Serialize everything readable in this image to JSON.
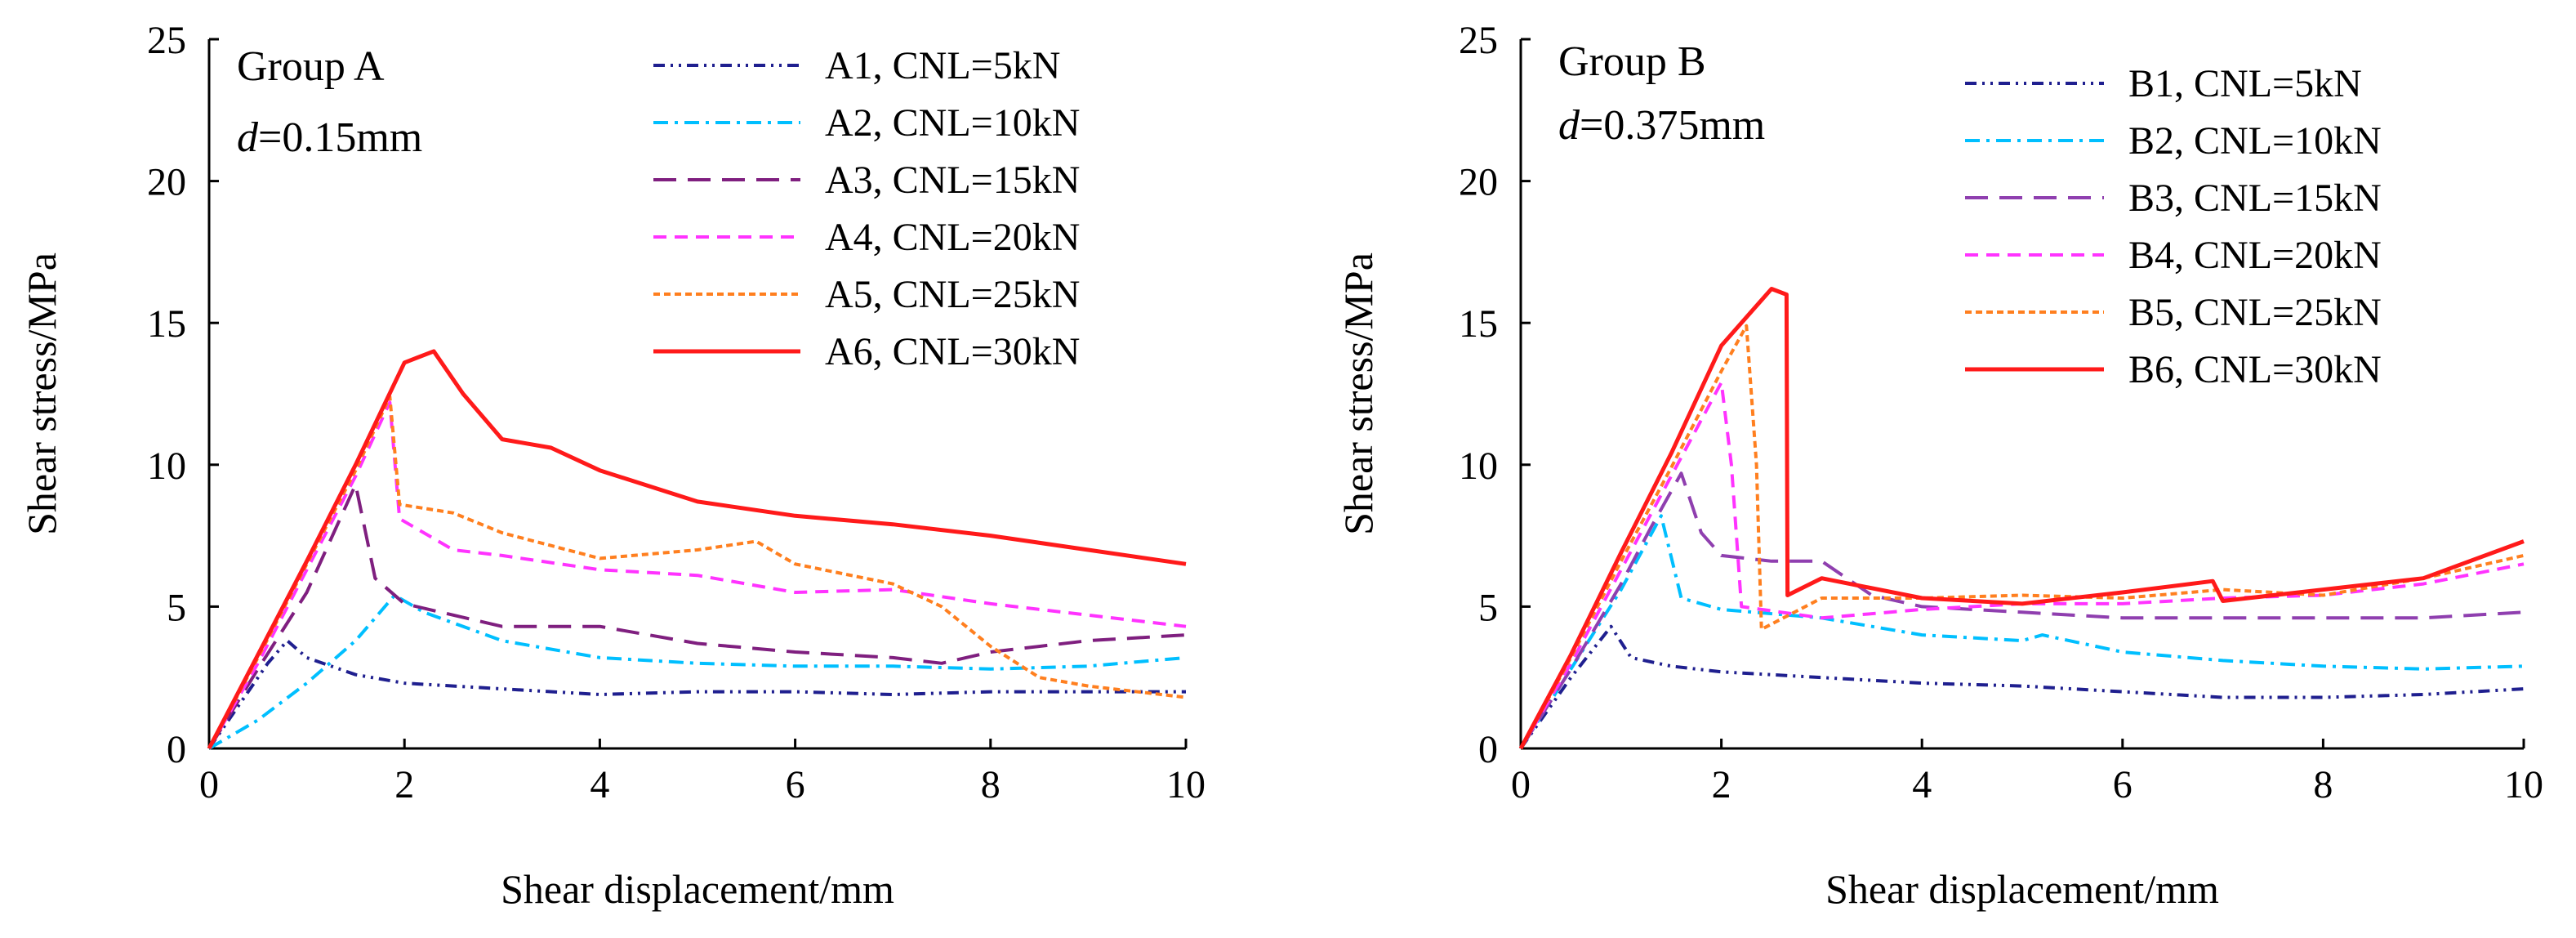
{
  "figure": {
    "panels_note": "Two side-by-side shear stress vs displacement plots"
  },
  "chart_data": [
    {
      "type": "line",
      "panel": "A",
      "group_label": "Group A",
      "param_symbol": "d",
      "param_value": "=0.15mm",
      "xlabel": "Shear displacement/mm",
      "ylabel": "Shear stress/MPa",
      "xlim": [
        0,
        10
      ],
      "ylim": [
        0,
        25
      ],
      "xticks": [
        0,
        2,
        4,
        6,
        8,
        10
      ],
      "yticks": [
        0,
        5,
        10,
        15,
        20,
        25
      ],
      "series": [
        {
          "name": "A1, CNL=5kN",
          "color": "#1f1f8f",
          "dash": "14 7 3 7 3 7",
          "x": [
            0,
            0.3,
            0.6,
            0.8,
            1.0,
            1.5,
            2.0,
            3.0,
            4.0,
            5.0,
            6.0,
            7.0,
            8.0,
            9.0,
            10.0
          ],
          "y": [
            0,
            1.5,
            3.0,
            3.8,
            3.2,
            2.6,
            2.3,
            2.1,
            1.9,
            2.0,
            2.0,
            1.9,
            2.0,
            2.0,
            2.0
          ]
        },
        {
          "name": "A2, CNL=10kN",
          "color": "#00bfff",
          "dash": "18 8 4 8",
          "x": [
            0,
            0.5,
            1.0,
            1.5,
            1.9,
            2.2,
            3.0,
            4.0,
            5.0,
            6.0,
            7.0,
            8.0,
            9.0,
            10.0
          ],
          "y": [
            0,
            1.0,
            2.3,
            3.8,
            5.4,
            4.8,
            3.8,
            3.2,
            3.0,
            2.9,
            2.9,
            2.8,
            2.9,
            3.2
          ]
        },
        {
          "name": "A3, CNL=15kN",
          "color": "#7f1f7f",
          "dash": "28 14",
          "x": [
            0,
            0.5,
            1.0,
            1.5,
            1.7,
            2.0,
            3.0,
            4.0,
            5.0,
            6.0,
            7.0,
            7.5,
            8.0,
            9.0,
            10.0
          ],
          "y": [
            0,
            2.8,
            5.5,
            9.3,
            6.0,
            5.1,
            4.3,
            4.3,
            3.7,
            3.4,
            3.2,
            3.0,
            3.4,
            3.8,
            4.0
          ]
        },
        {
          "name": "A4, CNL=20kN",
          "color": "#ff33ff",
          "dash": "16 10",
          "x": [
            0,
            0.5,
            1.0,
            1.5,
            1.85,
            1.95,
            2.5,
            3.0,
            4.0,
            5.0,
            6.0,
            7.0,
            8.0,
            9.0,
            10.0
          ],
          "y": [
            0,
            3.0,
            6.3,
            9.6,
            12.2,
            8.1,
            7.0,
            6.8,
            6.3,
            6.1,
            5.5,
            5.6,
            5.1,
            4.7,
            4.3
          ]
        },
        {
          "name": "A5, CNL=25kN",
          "color": "#ff7f1f",
          "dash": "8 5",
          "x": [
            0,
            0.5,
            1.0,
            1.5,
            1.85,
            1.95,
            2.5,
            3.0,
            4.0,
            5.0,
            5.6,
            6.0,
            7.0,
            7.5,
            8.0,
            8.5,
            9.0,
            10.0
          ],
          "y": [
            0,
            3.2,
            6.5,
            9.8,
            12.4,
            8.6,
            8.3,
            7.6,
            6.7,
            7.0,
            7.3,
            6.5,
            5.8,
            5.0,
            3.6,
            2.5,
            2.2,
            1.8
          ]
        },
        {
          "name": "A6, CNL=30kN",
          "color": "#ff1a1a",
          "dash": "",
          "x": [
            0,
            0.5,
            1.0,
            1.5,
            2.0,
            2.3,
            2.6,
            3.0,
            3.5,
            4.0,
            5.0,
            6.0,
            7.0,
            8.0,
            9.0,
            10.0
          ],
          "y": [
            0,
            3.3,
            6.6,
            10.0,
            13.6,
            14.0,
            12.5,
            10.9,
            10.6,
            9.8,
            8.7,
            8.2,
            7.9,
            7.5,
            7.0,
            6.5
          ]
        }
      ]
    },
    {
      "type": "line",
      "panel": "B",
      "group_label": "Group B",
      "param_symbol": "d",
      "param_value": "=0.375mm",
      "xlabel": "Shear displacement/mm",
      "ylabel": "Shear stress/MPa",
      "xlim": [
        0,
        10
      ],
      "ylim": [
        0,
        25
      ],
      "xticks": [
        0,
        2,
        4,
        6,
        8,
        10
      ],
      "yticks": [
        0,
        5,
        10,
        15,
        20,
        25
      ],
      "series": [
        {
          "name": "B1, CNL=5kN",
          "color": "#1f1f8f",
          "dash": "14 7 3 7 3 7",
          "x": [
            0,
            0.5,
            0.9,
            1.1,
            1.5,
            2.0,
            3.0,
            4.0,
            5.0,
            6.0,
            7.0,
            8.0,
            9.0,
            10.0
          ],
          "y": [
            0,
            2.5,
            4.3,
            3.2,
            2.9,
            2.7,
            2.5,
            2.3,
            2.2,
            2.0,
            1.8,
            1.8,
            1.9,
            2.1
          ]
        },
        {
          "name": "B2, CNL=10kN",
          "color": "#00bfff",
          "dash": "18 8 4 8",
          "x": [
            0,
            0.5,
            1.0,
            1.4,
            1.6,
            2.0,
            3.0,
            4.0,
            5.0,
            5.2,
            6.0,
            7.0,
            8.0,
            9.0,
            10.0
          ],
          "y": [
            0,
            2.8,
            5.6,
            8.2,
            5.3,
            4.9,
            4.6,
            4.0,
            3.8,
            4.0,
            3.4,
            3.1,
            2.9,
            2.8,
            2.9
          ]
        },
        {
          "name": "B3, CNL=15kN",
          "color": "#8f3faf",
          "dash": "28 14",
          "x": [
            0,
            0.5,
            1.0,
            1.3,
            1.6,
            1.8,
            2.0,
            2.5,
            3.0,
            3.5,
            4.0,
            5.0,
            6.0,
            7.0,
            8.0,
            9.0,
            10.0
          ],
          "y": [
            0,
            2.8,
            5.8,
            7.8,
            9.7,
            7.6,
            6.8,
            6.6,
            6.6,
            5.4,
            5.0,
            4.8,
            4.6,
            4.6,
            4.6,
            4.6,
            4.8
          ]
        },
        {
          "name": "B4, CNL=20kN",
          "color": "#ff33ff",
          "dash": "16 10",
          "x": [
            0,
            0.5,
            1.0,
            1.5,
            2.0,
            2.1,
            2.2,
            3.0,
            4.0,
            5.0,
            6.0,
            7.0,
            8.0,
            9.0,
            10.0
          ],
          "y": [
            0,
            3.0,
            6.3,
            9.6,
            12.9,
            10.0,
            5.0,
            4.6,
            4.9,
            5.1,
            5.1,
            5.3,
            5.4,
            5.8,
            6.5
          ]
        },
        {
          "name": "B5, CNL=25kN",
          "color": "#ff7f1f",
          "dash": "8 5",
          "x": [
            0,
            0.5,
            1.0,
            1.5,
            2.0,
            2.25,
            2.35,
            2.4,
            3.0,
            4.0,
            5.0,
            6.0,
            7.0,
            8.0,
            9.0,
            10.0
          ],
          "y": [
            0,
            3.2,
            6.6,
            9.9,
            13.3,
            14.9,
            10.0,
            4.2,
            5.3,
            5.3,
            5.4,
            5.3,
            5.6,
            5.4,
            6.0,
            6.8
          ]
        },
        {
          "name": "B6, CNL=30kN",
          "color": "#ff1a1a",
          "dash": "",
          "x": [
            0,
            0.5,
            1.0,
            1.5,
            2.0,
            2.3,
            2.5,
            2.65,
            2.66,
            3.0,
            4.0,
            5.0,
            6.0,
            6.9,
            7.0,
            8.0,
            9.0,
            10.0
          ],
          "y": [
            0,
            3.3,
            6.9,
            10.4,
            14.2,
            15.4,
            16.2,
            16.0,
            5.4,
            6.0,
            5.3,
            5.1,
            5.5,
            5.9,
            5.2,
            5.6,
            6.0,
            7.3
          ]
        }
      ]
    }
  ]
}
